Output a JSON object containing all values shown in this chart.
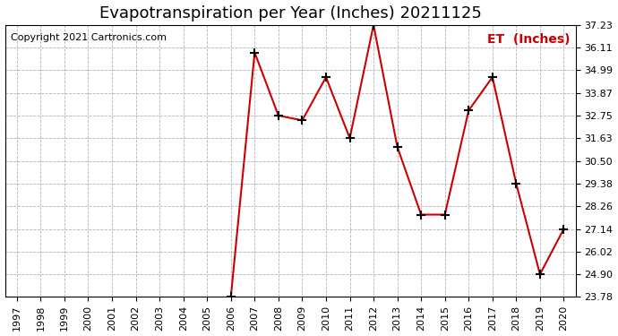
{
  "title": "Evapotranspiration per Year (Inches) 20211125",
  "copyright": "Copyright 2021 Cartronics.com",
  "legend_label": "ET  (Inches)",
  "all_years": [
    1997,
    1998,
    1999,
    2000,
    2001,
    2002,
    2003,
    2004,
    2005,
    2006,
    2007,
    2008,
    2009,
    2010,
    2011,
    2012,
    2013,
    2014,
    2015,
    2016,
    2017,
    2018,
    2019,
    2020
  ],
  "data_years": [
    2006,
    2007,
    2008,
    2009,
    2010,
    2011,
    2012,
    2013,
    2014,
    2015,
    2016,
    2017,
    2018,
    2019,
    2020
  ],
  "data_values": [
    23.78,
    35.87,
    32.75,
    32.51,
    34.65,
    31.63,
    37.23,
    31.2,
    27.85,
    27.85,
    33.0,
    34.65,
    29.38,
    24.9,
    27.14
  ],
  "yticks": [
    23.78,
    24.9,
    26.02,
    27.14,
    28.26,
    29.38,
    30.5,
    31.63,
    32.75,
    33.87,
    34.99,
    36.11,
    37.23
  ],
  "ymin": 23.78,
  "ymax": 37.23,
  "line_color": "#cc0000",
  "marker_color": "#000000",
  "title_fontsize": 13,
  "copyright_fontsize": 8,
  "legend_fontsize": 10,
  "tick_fontsize": 8,
  "background_color": "#ffffff",
  "grid_color": "#aaaaaa"
}
